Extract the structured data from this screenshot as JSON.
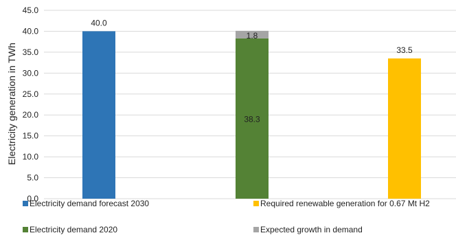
{
  "chart_data": {
    "type": "bar",
    "stacked": true,
    "title": "",
    "xlabel": "",
    "ylabel": "Electricity generation in TWh",
    "ylim": [
      0,
      45
    ],
    "yticks": [
      "0.0",
      "5.0",
      "10.0",
      "15.0",
      "20.0",
      "25.0",
      "30.0",
      "35.0",
      "40.0",
      "45.0"
    ],
    "grid": true,
    "legend_position": "bottom",
    "categories": [
      "",
      "",
      ""
    ],
    "series": [
      {
        "name": "Electricity demand forecast 2030",
        "color": "#2E75B6",
        "values": [
          40.0,
          null,
          null
        ],
        "labels": [
          "40.0",
          "",
          ""
        ]
      },
      {
        "name": "Electricity demand 2020",
        "color": "#548235",
        "values": [
          null,
          38.3,
          null
        ],
        "labels": [
          "",
          "38.3",
          ""
        ]
      },
      {
        "name": "Expected growth in demand",
        "color": "#A5A5A5",
        "values": [
          null,
          1.8,
          null
        ],
        "labels": [
          "",
          "1.8",
          ""
        ]
      },
      {
        "name": "Required renewable generation for 0.67 Mt H2",
        "color": "#FFC000",
        "values": [
          null,
          null,
          33.5
        ],
        "labels": [
          "",
          "",
          "33.5"
        ]
      }
    ]
  }
}
